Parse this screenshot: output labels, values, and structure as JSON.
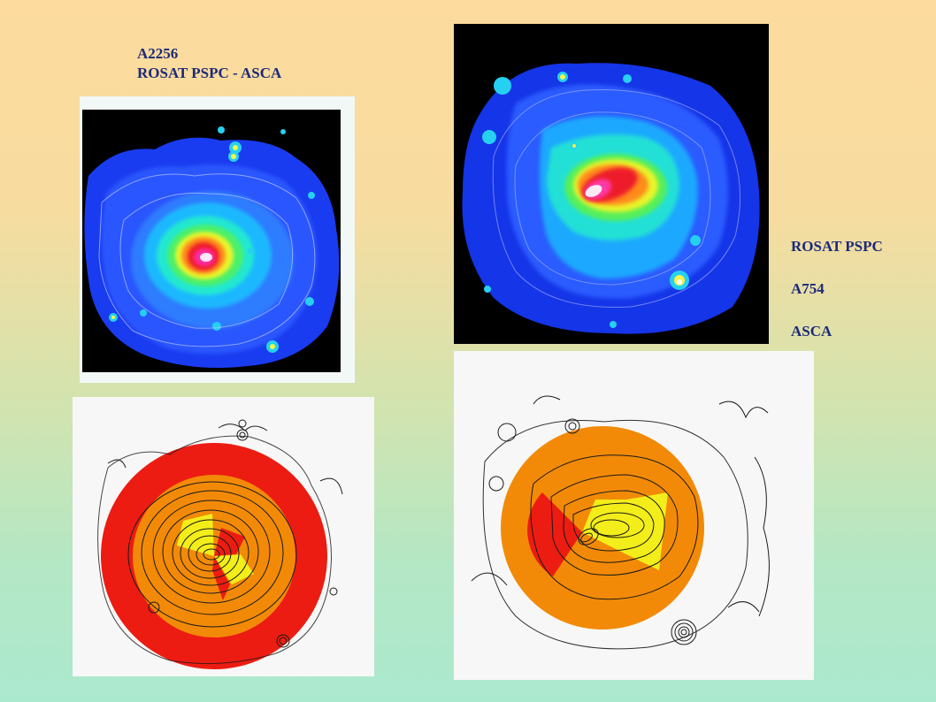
{
  "slide": {
    "left_caption": {
      "line1": "A2256",
      "line2": "ROSAT PSPC  -  ASCA"
    },
    "right_caption": {
      "line1": "ROSAT PSPC",
      "line2": "A754",
      "line3": "ASCA"
    }
  },
  "colors": {
    "label": "#1c2a7a",
    "bg_top": "#fddb9e",
    "bg_bottom": "#abe9cf",
    "temp_red": "#ec1c12",
    "temp_orange": "#f28a08",
    "temp_yellow": "#f3ee1a"
  }
}
